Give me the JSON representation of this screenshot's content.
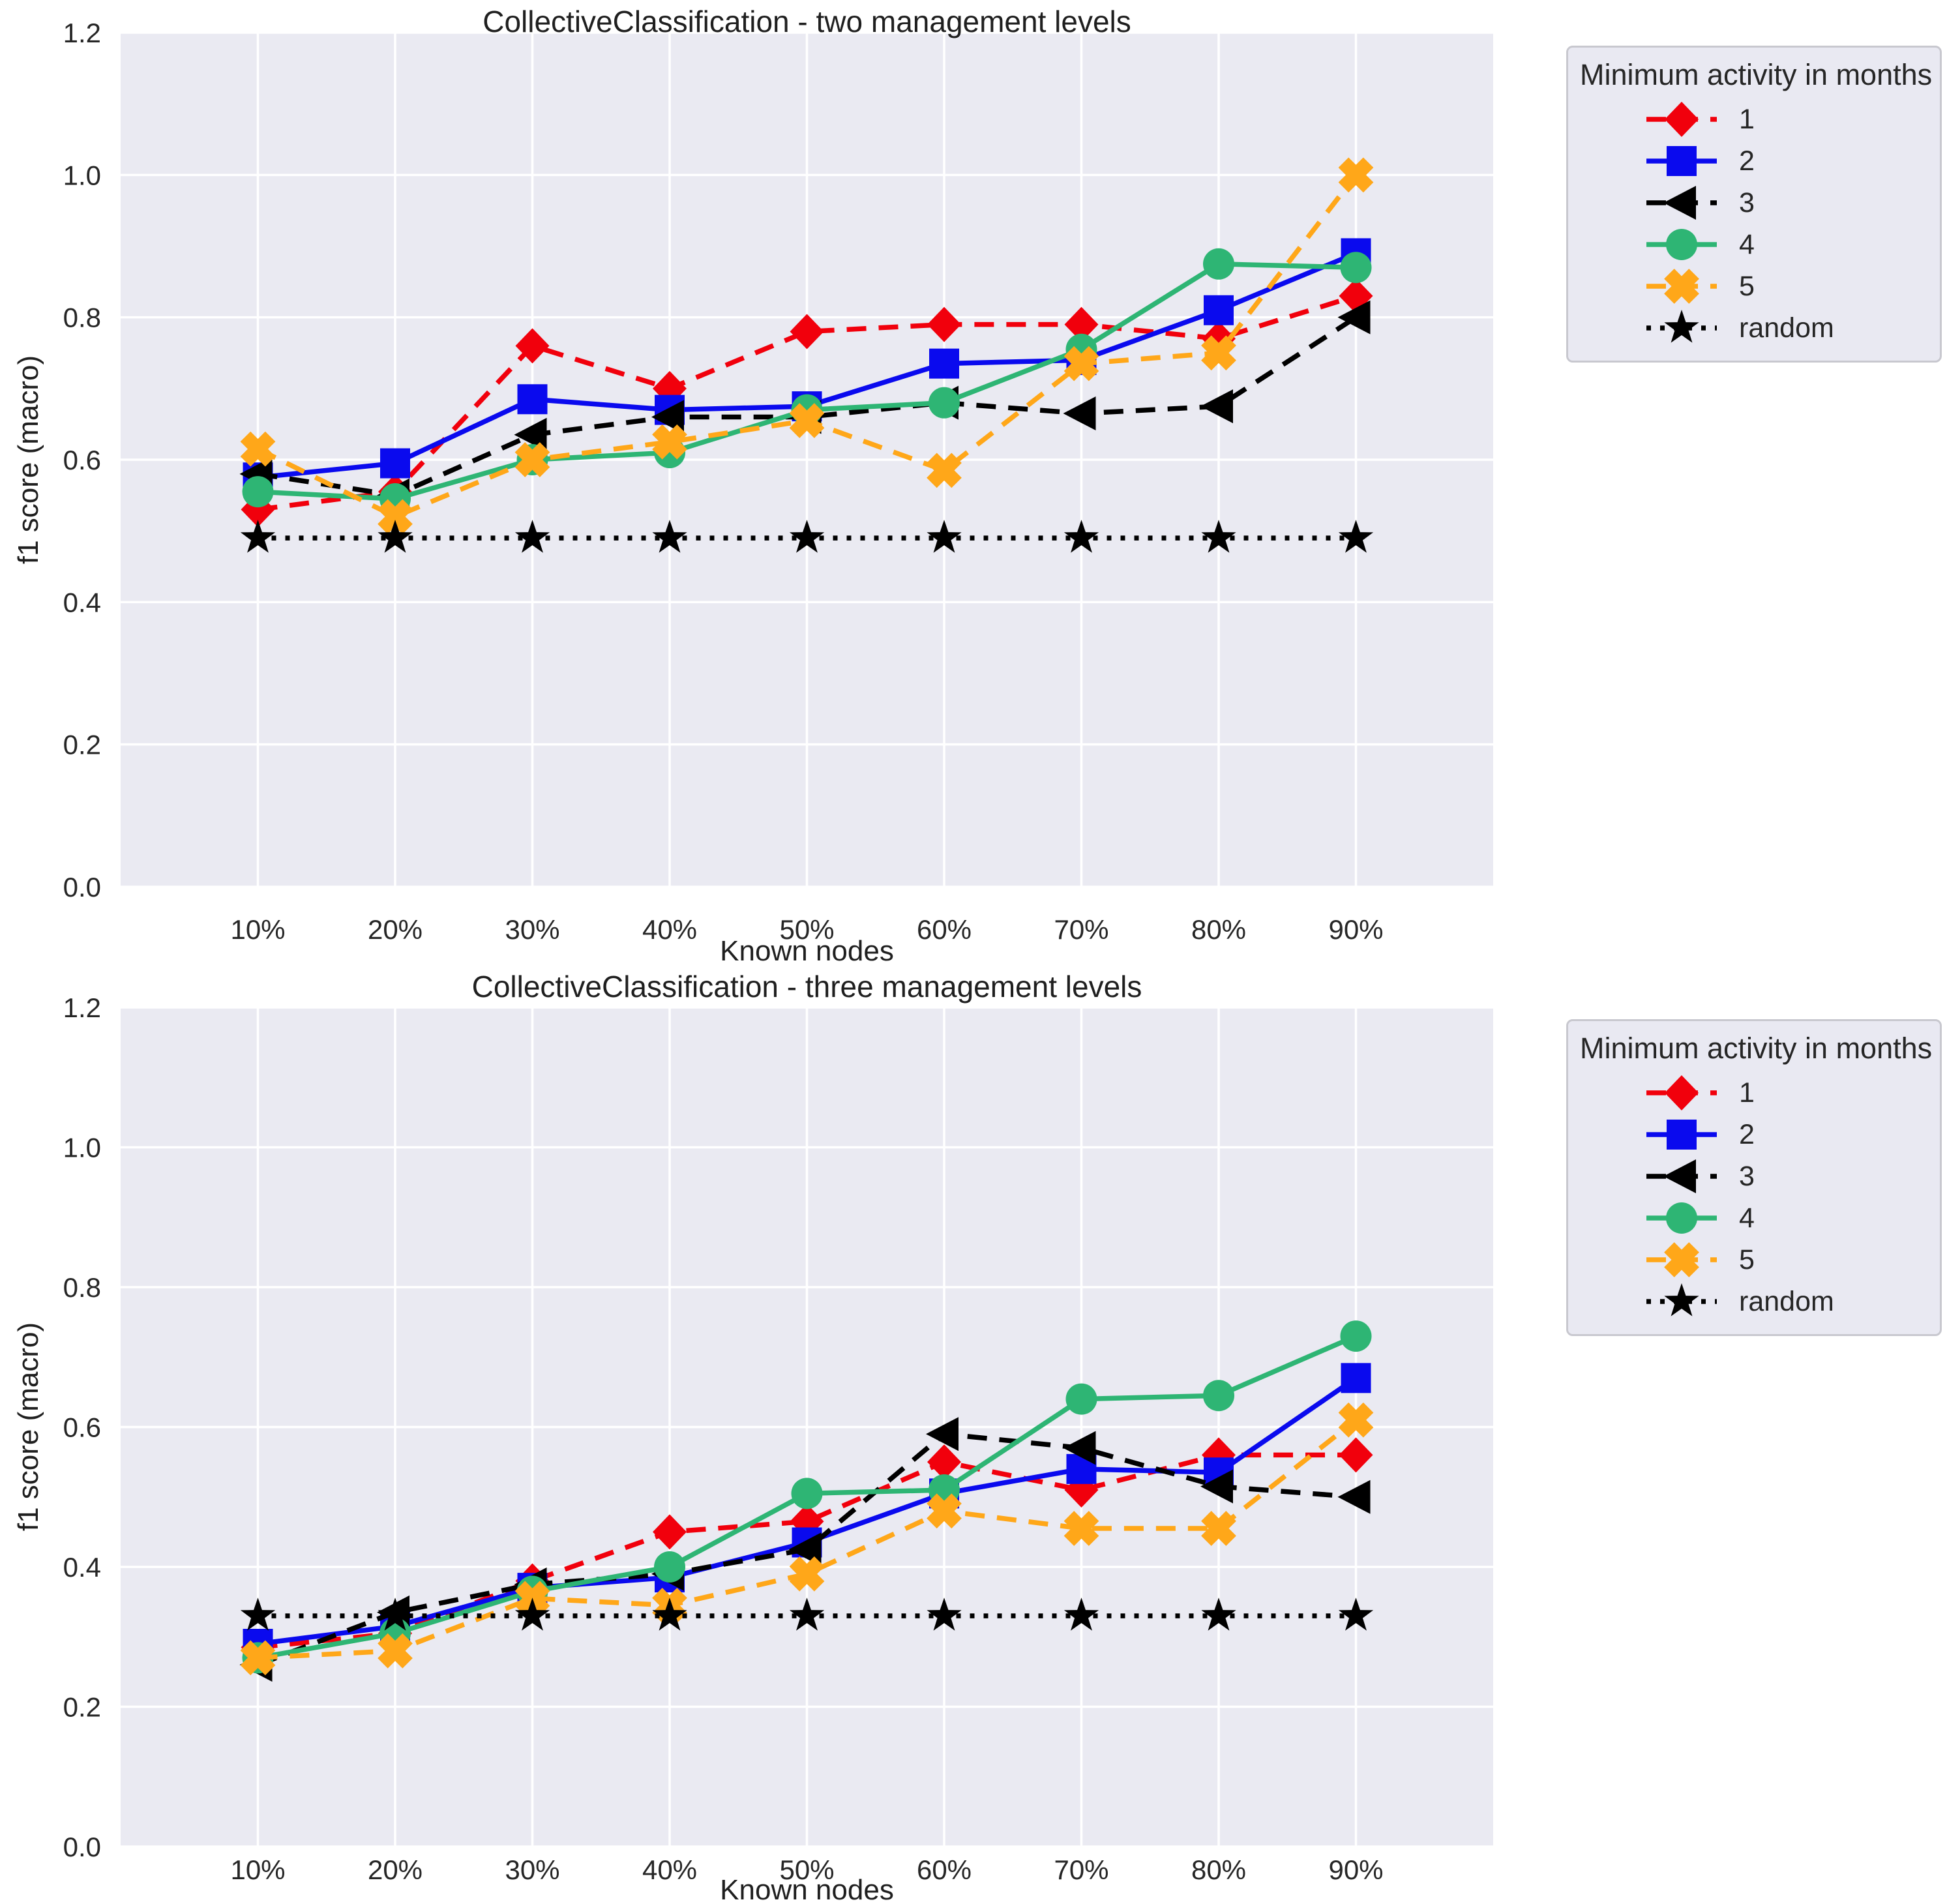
{
  "figure": {
    "y_ticks": [
      "0.0",
      "0.2",
      "0.4",
      "0.6",
      "0.8",
      "1.0",
      "1.2"
    ],
    "x_ticks": [
      "10%",
      "20%",
      "30%",
      "40%",
      "50%",
      "60%",
      "70%",
      "80%",
      "90%"
    ]
  },
  "legend": {
    "title": "Minimum activity in months",
    "entries": [
      {
        "label": "1",
        "color": "#f1000c",
        "line": "dashed",
        "marker": "diamond"
      },
      {
        "label": "2",
        "color": "#0a0aee",
        "line": "solid",
        "marker": "square"
      },
      {
        "label": "3",
        "color": "#000000",
        "line": "dashed",
        "marker": "triangle-left"
      },
      {
        "label": "4",
        "color": "#2eb574",
        "line": "solid",
        "marker": "circle"
      },
      {
        "label": "5",
        "color": "#ffa719",
        "line": "dashed",
        "marker": "x"
      },
      {
        "label": "random",
        "color": "#000000",
        "line": "dotted",
        "marker": "star"
      }
    ]
  },
  "chart_data": [
    {
      "type": "line",
      "title": "CollectiveClassification - two management levels",
      "xlabel": "Known nodes",
      "ylabel": "f1 score (macro)",
      "ylim": [
        0.0,
        1.2
      ],
      "grid": true,
      "legend_position": "outside-top-right",
      "categories": [
        "10%",
        "20%",
        "30%",
        "40%",
        "50%",
        "60%",
        "70%",
        "80%",
        "90%"
      ],
      "series": [
        {
          "name": "1",
          "color": "#f1000c",
          "line": "dashed",
          "marker": "diamond",
          "values": [
            0.53,
            0.555,
            0.76,
            0.7,
            0.78,
            0.79,
            0.79,
            0.77,
            0.83
          ]
        },
        {
          "name": "2",
          "color": "#0a0aee",
          "line": "solid",
          "marker": "square",
          "values": [
            0.575,
            0.595,
            0.685,
            0.67,
            0.675,
            0.735,
            0.74,
            0.81,
            0.89
          ]
        },
        {
          "name": "3",
          "color": "#000000",
          "line": "dashed",
          "marker": "triangle-left",
          "values": [
            0.58,
            0.55,
            0.635,
            0.66,
            0.66,
            0.68,
            0.665,
            0.675,
            0.8
          ]
        },
        {
          "name": "4",
          "color": "#2eb574",
          "line": "solid",
          "marker": "circle",
          "values": [
            0.555,
            0.545,
            0.6,
            0.61,
            0.67,
            0.68,
            0.755,
            0.875,
            0.87
          ]
        },
        {
          "name": "5",
          "color": "#ffa719",
          "line": "dashed",
          "marker": "x",
          "values": [
            0.615,
            0.52,
            0.6,
            0.625,
            0.655,
            0.585,
            0.735,
            0.75,
            1.0
          ]
        },
        {
          "name": "random",
          "color": "#000000",
          "line": "dotted",
          "marker": "star",
          "values": [
            0.49,
            0.49,
            0.49,
            0.49,
            0.49,
            0.49,
            0.49,
            0.49,
            0.49
          ]
        }
      ]
    },
    {
      "type": "line",
      "title": "CollectiveClassification - three management levels",
      "xlabel": "Known nodes",
      "ylabel": "f1 score (macro)",
      "ylim": [
        0.0,
        1.2
      ],
      "grid": true,
      "legend_position": "outside-top-right",
      "categories": [
        "10%",
        "20%",
        "30%",
        "40%",
        "50%",
        "60%",
        "70%",
        "80%",
        "90%"
      ],
      "series": [
        {
          "name": "1",
          "color": "#f1000c",
          "line": "dashed",
          "marker": "diamond",
          "values": [
            0.285,
            0.305,
            0.38,
            0.45,
            0.465,
            0.55,
            0.51,
            0.56,
            0.56
          ]
        },
        {
          "name": "2",
          "color": "#0a0aee",
          "line": "solid",
          "marker": "square",
          "values": [
            0.29,
            0.315,
            0.37,
            0.385,
            0.435,
            0.505,
            0.54,
            0.535,
            0.67
          ]
        },
        {
          "name": "3",
          "color": "#000000",
          "line": "dashed",
          "marker": "triangle-left",
          "values": [
            0.26,
            0.335,
            0.375,
            0.39,
            0.425,
            0.59,
            0.57,
            0.515,
            0.5
          ]
        },
        {
          "name": "4",
          "color": "#2eb574",
          "line": "solid",
          "marker": "circle",
          "values": [
            0.27,
            0.305,
            0.365,
            0.4,
            0.505,
            0.51,
            0.64,
            0.645,
            0.73
          ]
        },
        {
          "name": "5",
          "color": "#ffa719",
          "line": "dashed",
          "marker": "x",
          "values": [
            0.27,
            0.28,
            0.355,
            0.345,
            0.39,
            0.48,
            0.455,
            0.455,
            0.61
          ]
        },
        {
          "name": "random",
          "color": "#000000",
          "line": "dotted",
          "marker": "star",
          "values": [
            0.33,
            0.33,
            0.33,
            0.33,
            0.33,
            0.33,
            0.33,
            0.33,
            0.33
          ]
        }
      ]
    }
  ],
  "style": {
    "plot_background": "#eaeaf2",
    "grid_color": "#ffffff",
    "text_color": "#262626"
  }
}
